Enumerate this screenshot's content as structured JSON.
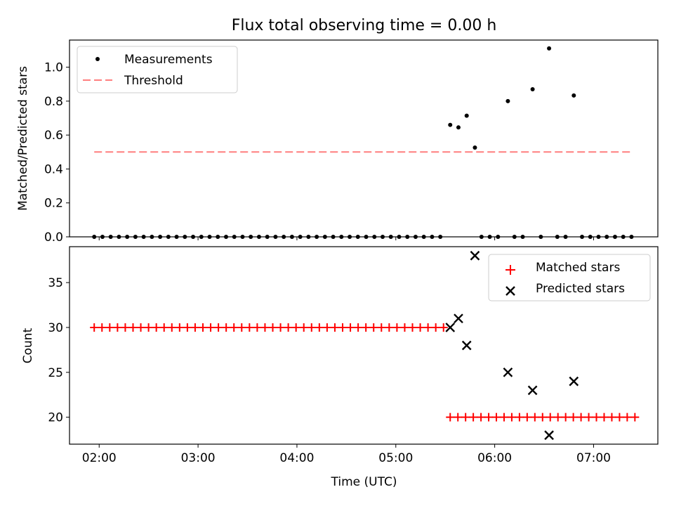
{
  "chart_data": [
    {
      "type": "scatter",
      "title": "Flux total observing time = 0.00 h",
      "xlabel": "",
      "ylabel": "Matched/Predicted stars",
      "ylim": [
        0,
        1.16
      ],
      "xlim_hours": [
        1.7,
        7.65
      ],
      "x_ticks": [
        "02:00",
        "03:00",
        "04:00",
        "05:00",
        "06:00",
        "07:00"
      ],
      "y_ticks": [
        "0.0",
        "0.2",
        "0.4",
        "0.6",
        "0.8",
        "1.0"
      ],
      "legend_position": "upper left",
      "series": [
        {
          "name": "Measurements",
          "color": "#000000",
          "marker": "dot",
          "points": [
            [
              "01:57",
              0
            ],
            [
              "02:02",
              0
            ],
            [
              "02:07",
              0
            ],
            [
              "02:12",
              0
            ],
            [
              "02:17",
              0
            ],
            [
              "02:22",
              0
            ],
            [
              "02:27",
              0
            ],
            [
              "02:32",
              0
            ],
            [
              "02:37",
              0
            ],
            [
              "02:42",
              0
            ],
            [
              "02:47",
              0
            ],
            [
              "02:52",
              0
            ],
            [
              "02:57",
              0
            ],
            [
              "03:02",
              0
            ],
            [
              "03:07",
              0
            ],
            [
              "03:12",
              0
            ],
            [
              "03:17",
              0
            ],
            [
              "03:22",
              0
            ],
            [
              "03:27",
              0
            ],
            [
              "03:32",
              0
            ],
            [
              "03:37",
              0
            ],
            [
              "03:42",
              0
            ],
            [
              "03:47",
              0
            ],
            [
              "03:52",
              0
            ],
            [
              "03:57",
              0
            ],
            [
              "04:02",
              0
            ],
            [
              "04:07",
              0
            ],
            [
              "04:12",
              0
            ],
            [
              "04:17",
              0
            ],
            [
              "04:22",
              0
            ],
            [
              "04:27",
              0
            ],
            [
              "04:32",
              0
            ],
            [
              "04:37",
              0
            ],
            [
              "04:42",
              0
            ],
            [
              "04:47",
              0
            ],
            [
              "04:52",
              0
            ],
            [
              "04:57",
              0
            ],
            [
              "05:02",
              0
            ],
            [
              "05:07",
              0
            ],
            [
              "05:12",
              0
            ],
            [
              "05:17",
              0
            ],
            [
              "05:22",
              0
            ],
            [
              "05:27",
              0
            ],
            [
              "05:33",
              0.66
            ],
            [
              "05:38",
              0.645
            ],
            [
              "05:43",
              0.714
            ],
            [
              "05:48",
              0.526
            ],
            [
              "05:52",
              0
            ],
            [
              "05:57",
              0
            ],
            [
              "06:02",
              0
            ],
            [
              "06:08",
              0.8
            ],
            [
              "06:12",
              0
            ],
            [
              "06:17",
              0
            ],
            [
              "06:23",
              0.87
            ],
            [
              "06:28",
              0
            ],
            [
              "06:33",
              1.111
            ],
            [
              "06:38",
              0
            ],
            [
              "06:43",
              0
            ],
            [
              "06:48",
              0.833
            ],
            [
              "06:53",
              0
            ],
            [
              "06:58",
              0
            ],
            [
              "07:03",
              0
            ],
            [
              "07:08",
              0
            ],
            [
              "07:13",
              0
            ],
            [
              "07:18",
              0
            ],
            [
              "07:23",
              0
            ]
          ]
        },
        {
          "name": "Threshold",
          "color": "#ff7f7f",
          "style": "dashed",
          "points": [
            [
              "01:57",
              0.5
            ],
            [
              "07:23",
              0.5
            ]
          ]
        }
      ]
    },
    {
      "type": "scatter",
      "title": "",
      "xlabel": "Time (UTC)",
      "ylabel": "Count",
      "ylim": [
        17,
        39
      ],
      "xlim_hours": [
        1.7,
        7.65
      ],
      "x_ticks": [
        "02:00",
        "03:00",
        "04:00",
        "05:00",
        "06:00",
        "07:00"
      ],
      "y_ticks": [
        "20",
        "25",
        "30",
        "35"
      ],
      "legend_position": "upper right",
      "series": [
        {
          "name": "Matched stars",
          "color": "#ff0000",
          "marker": "plus",
          "segments": [
            {
              "start": "01:57",
              "end": "05:29",
              "step_minutes": 4.71,
              "count": 46,
              "value": 30
            },
            {
              "start": "05:33",
              "end": "07:25",
              "step_minutes": 4.67,
              "count": 25,
              "value": 20
            }
          ]
        },
        {
          "name": "Predicted stars",
          "color": "#000000",
          "marker": "x",
          "points": [
            [
              "05:33",
              30
            ],
            [
              "05:38",
              31
            ],
            [
              "05:43",
              28
            ],
            [
              "05:48",
              38
            ],
            [
              "06:08",
              25
            ],
            [
              "06:23",
              23
            ],
            [
              "06:33",
              18
            ],
            [
              "06:48",
              24
            ]
          ]
        }
      ]
    }
  ]
}
